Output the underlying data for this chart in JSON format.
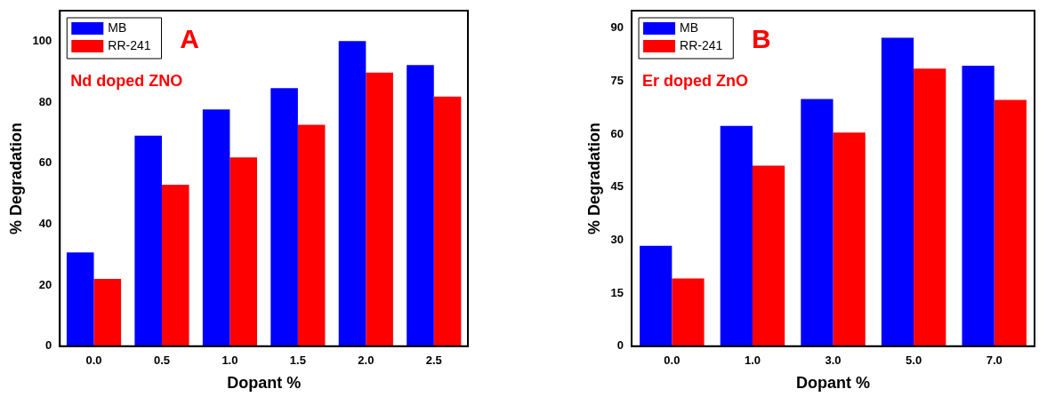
{
  "chart_data": [
    {
      "type": "bar",
      "annotations": [
        "A",
        "Nd doped ZNO"
      ],
      "xlabel": "Dopant %",
      "ylabel": "% Degradation",
      "categories": [
        "0.0",
        "0.5",
        "1.0",
        "1.5",
        "2.0",
        "2.5"
      ],
      "series": [
        {
          "name": "MB",
          "color": "#0000ff",
          "values": [
            30.7,
            69.0,
            77.6,
            84.6,
            100,
            92.2
          ]
        },
        {
          "name": "RR-241",
          "color": "#ff0000",
          "values": [
            22.1,
            52.9,
            61.9,
            72.6,
            89.7,
            81.8
          ]
        }
      ],
      "ylim": [
        0,
        110
      ],
      "yticks": [
        0,
        20,
        40,
        60,
        80,
        100
      ],
      "grid": false,
      "legend": "top left"
    },
    {
      "type": "bar",
      "annotations": [
        "B",
        "Er doped ZnO"
      ],
      "xlabel": "Dopant %",
      "ylabel": "% Degradation",
      "categories": [
        "0.0",
        "1.0",
        "3.0",
        "5.0",
        "7.0"
      ],
      "series": [
        {
          "name": "MB",
          "color": "#0000ff",
          "values": [
            28.4,
            62.4,
            70.0,
            87.3,
            79.4
          ]
        },
        {
          "name": "RR-241",
          "color": "#ff0000",
          "values": [
            19.2,
            51.1,
            60.5,
            78.6,
            69.7
          ]
        }
      ],
      "ylim": [
        0,
        95
      ],
      "yticks": [
        0,
        15,
        30,
        45,
        60,
        75,
        90
      ],
      "grid": false,
      "legend": "top left"
    }
  ]
}
